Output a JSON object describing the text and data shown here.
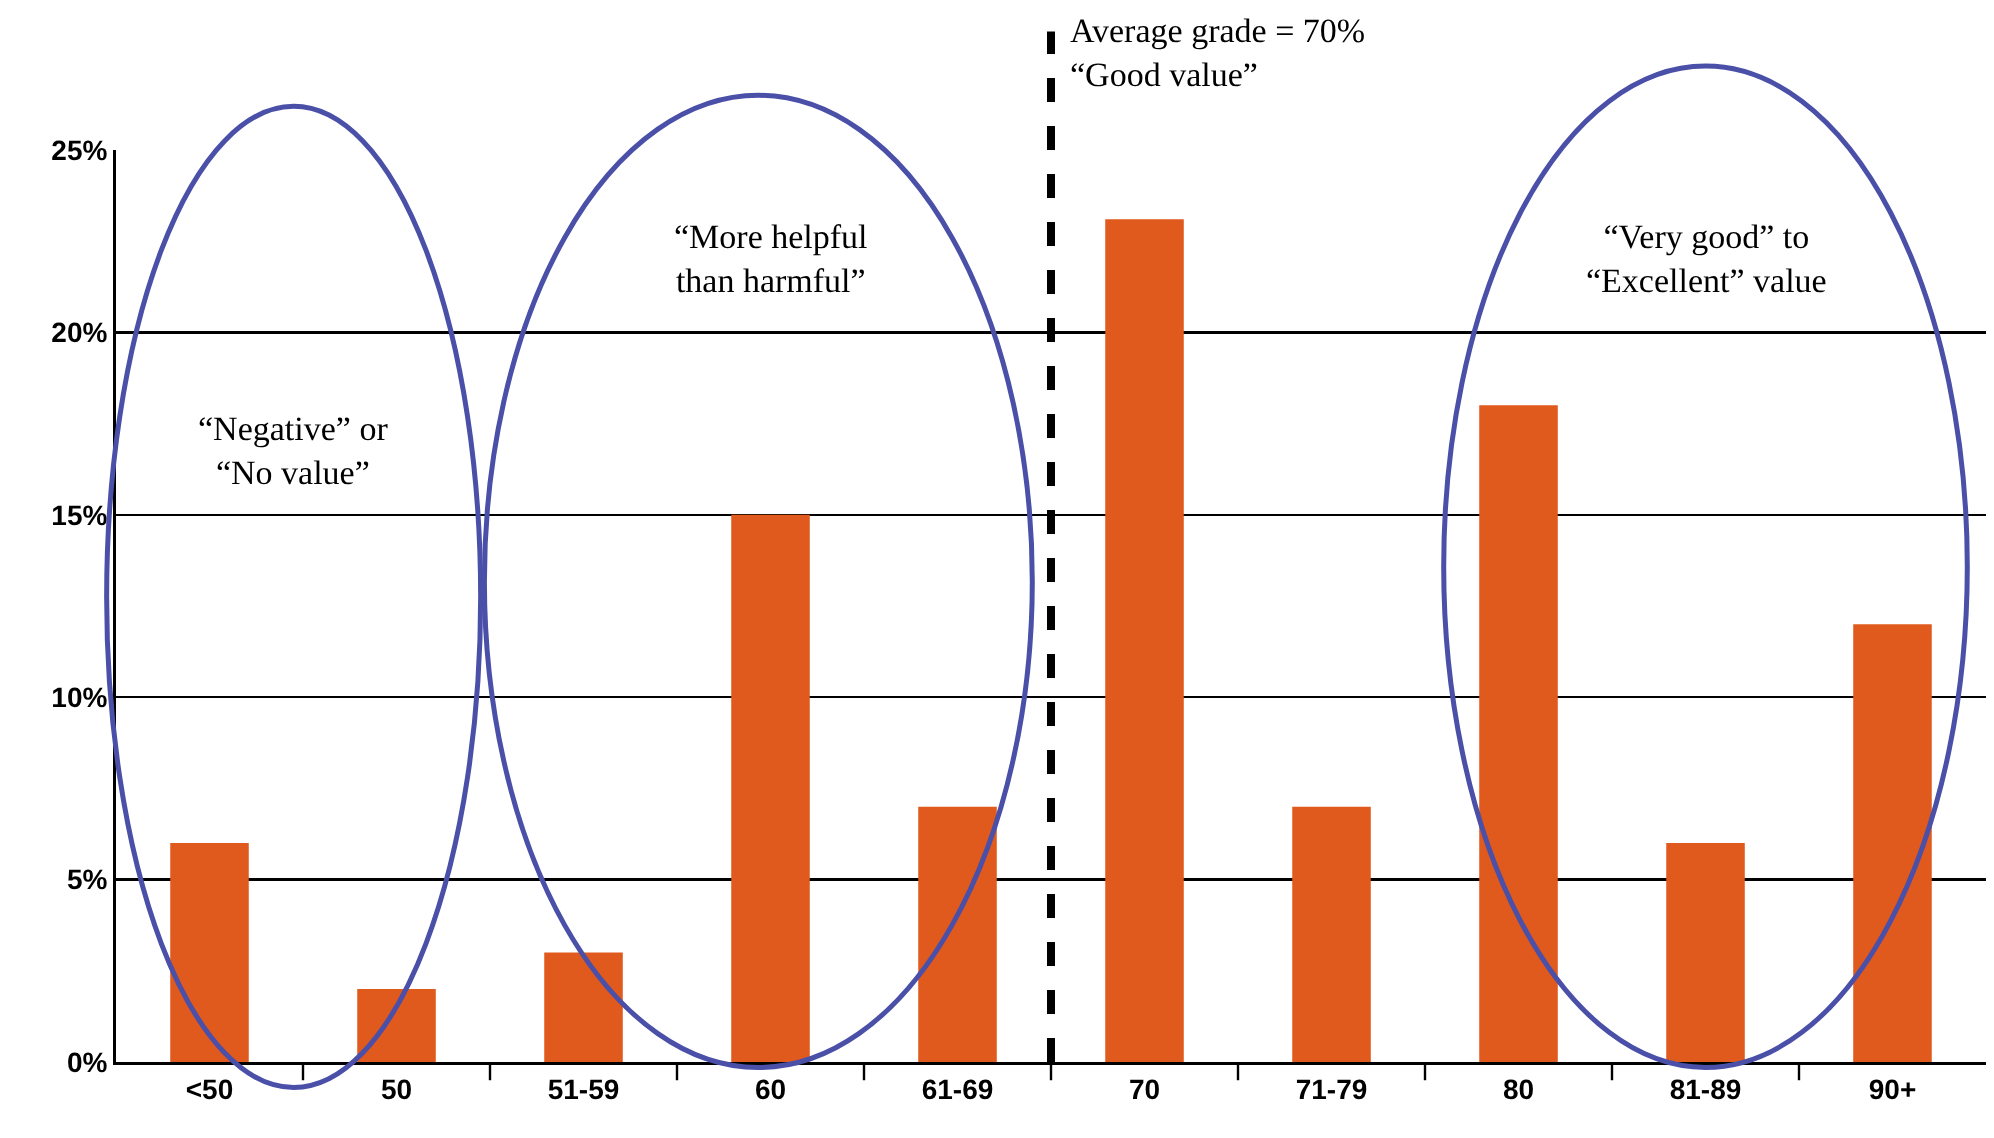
{
  "chart_data": {
    "type": "bar",
    "categories": [
      "<50",
      "50",
      "51-59",
      "60",
      "61-69",
      "70",
      "71-79",
      "80",
      "81-89",
      "90+"
    ],
    "values": [
      6,
      2,
      3,
      15,
      7,
      23.1,
      7,
      18,
      6,
      12
    ],
    "color": "#e05a1e",
    "ylim": [
      0,
      25
    ],
    "yticks": [
      {
        "value": 0,
        "label": "0%"
      },
      {
        "value": 5,
        "label": "5%"
      },
      {
        "value": 10,
        "label": "10%"
      },
      {
        "value": 15,
        "label": "15%"
      },
      {
        "value": 20,
        "label": "20%"
      },
      {
        "value": 25,
        "label": "25%"
      }
    ],
    "grid": "y",
    "ref_lines": [
      {
        "axis": "x",
        "value": "70",
        "label": "Average grade = 70%\n“Good value”",
        "color": "#000000",
        "line_style": "dashed"
      }
    ],
    "annotations": [
      "“Negative” or\n“No value”",
      "“More helpful\nthan harmful”",
      "“Very good” to\n“Excellent” value"
    ]
  }
}
